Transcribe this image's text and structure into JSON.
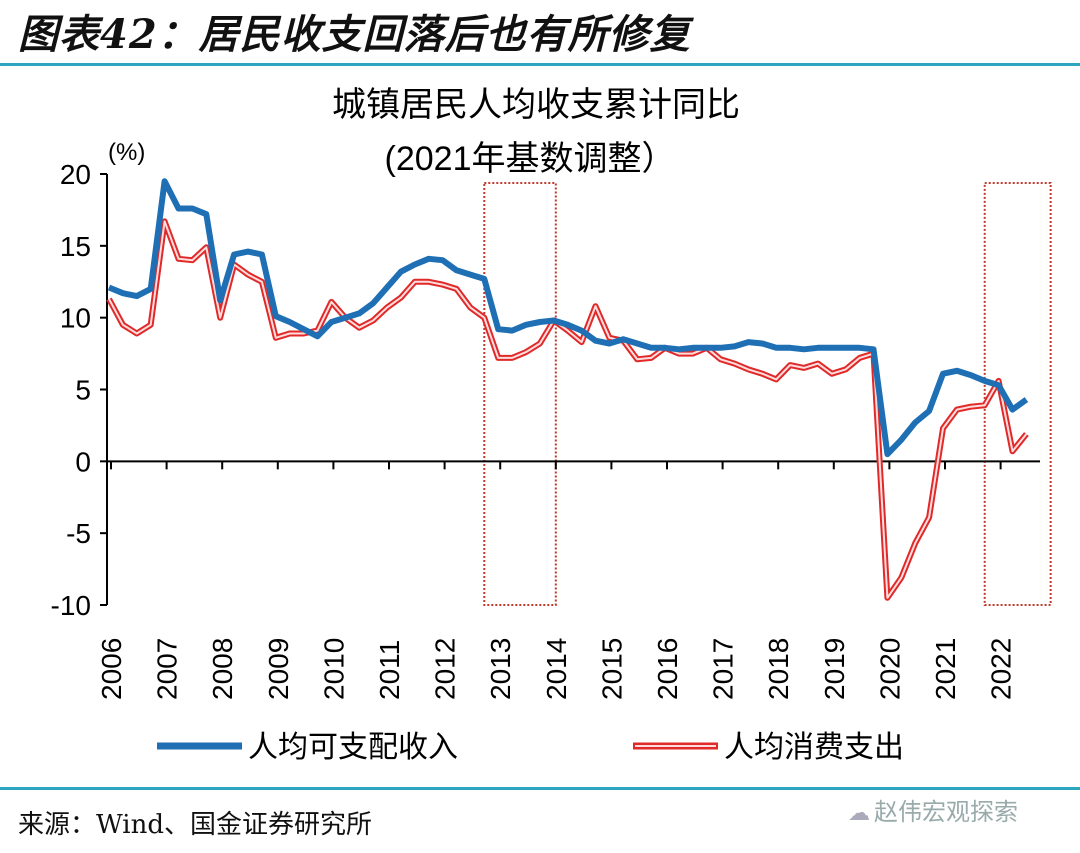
{
  "figure": {
    "title": "图表42：居民收支回落后也有所修复",
    "source": "来源：Wind、国金证券研究所",
    "watermark": "赵伟宏观探索"
  },
  "colors": {
    "income": "#1f6fb5",
    "expense": "#e02a2a",
    "rule": "#2fa6c0",
    "highlight": "#c0392b"
  },
  "chart_data": {
    "type": "line",
    "title": "城镇居民人均收支累计同比",
    "subtitle": "(2021年基数调整）",
    "ylabel": "(%)",
    "xlabel": "",
    "ylim": [
      -10,
      20
    ],
    "yticks": [
      20,
      15,
      10,
      5,
      0,
      -5,
      -10
    ],
    "xtick_labels": [
      "2006",
      "2007",
      "2008",
      "2009",
      "2010",
      "2011",
      "2012",
      "2013",
      "2014",
      "2015",
      "2016",
      "2017",
      "2018",
      "2019",
      "2020",
      "2021",
      "2022"
    ],
    "x_frequency": "quarterly",
    "x_start": "2006Q1",
    "highlight_regions": [
      {
        "from_year": 2012.75,
        "to_year": 2014.0
      },
      {
        "from_year": 2021.75,
        "to_year": 2022.9
      }
    ],
    "legend": "bottom",
    "series": [
      {
        "name": "人均可支配收入",
        "values": [
          12.1,
          11.7,
          11.5,
          12.0,
          19.5,
          17.6,
          17.6,
          17.2,
          11.2,
          14.4,
          14.6,
          14.4,
          10.1,
          9.7,
          9.2,
          8.7,
          9.7,
          10.0,
          10.3,
          11.0,
          12.1,
          13.2,
          13.7,
          14.1,
          14.0,
          13.3,
          13.0,
          12.7,
          9.2,
          9.1,
          9.5,
          9.7,
          9.8,
          9.5,
          9.1,
          8.4,
          8.2,
          8.5,
          8.2,
          7.9,
          7.9,
          7.8,
          7.9,
          7.9,
          7.9,
          8.0,
          8.3,
          8.2,
          7.9,
          7.9,
          7.8,
          7.9,
          7.9,
          7.9,
          7.9,
          7.8,
          0.5,
          1.5,
          2.7,
          3.5,
          6.1,
          6.3,
          6.0,
          5.6,
          5.3,
          3.6,
          4.3
        ]
      },
      {
        "name": "人均消费支出",
        "values": [
          11.3,
          9.5,
          8.9,
          9.5,
          16.7,
          14.1,
          14.0,
          14.9,
          10.0,
          13.7,
          13.0,
          12.5,
          8.6,
          8.9,
          8.9,
          9.1,
          11.1,
          10.0,
          9.3,
          9.8,
          10.7,
          11.4,
          12.5,
          12.5,
          12.3,
          12.0,
          10.7,
          10.0,
          7.2,
          7.2,
          7.6,
          8.2,
          9.8,
          9.1,
          8.3,
          10.8,
          8.6,
          8.4,
          7.1,
          7.2,
          7.9,
          7.5,
          7.5,
          7.9,
          7.1,
          6.8,
          6.4,
          6.1,
          5.7,
          6.7,
          6.5,
          6.8,
          6.1,
          6.4,
          7.2,
          7.5,
          -9.5,
          -8.1,
          -5.7,
          -3.9,
          2.3,
          3.6,
          3.8,
          3.9,
          5.6,
          0.7,
          1.9
        ]
      }
    ]
  }
}
